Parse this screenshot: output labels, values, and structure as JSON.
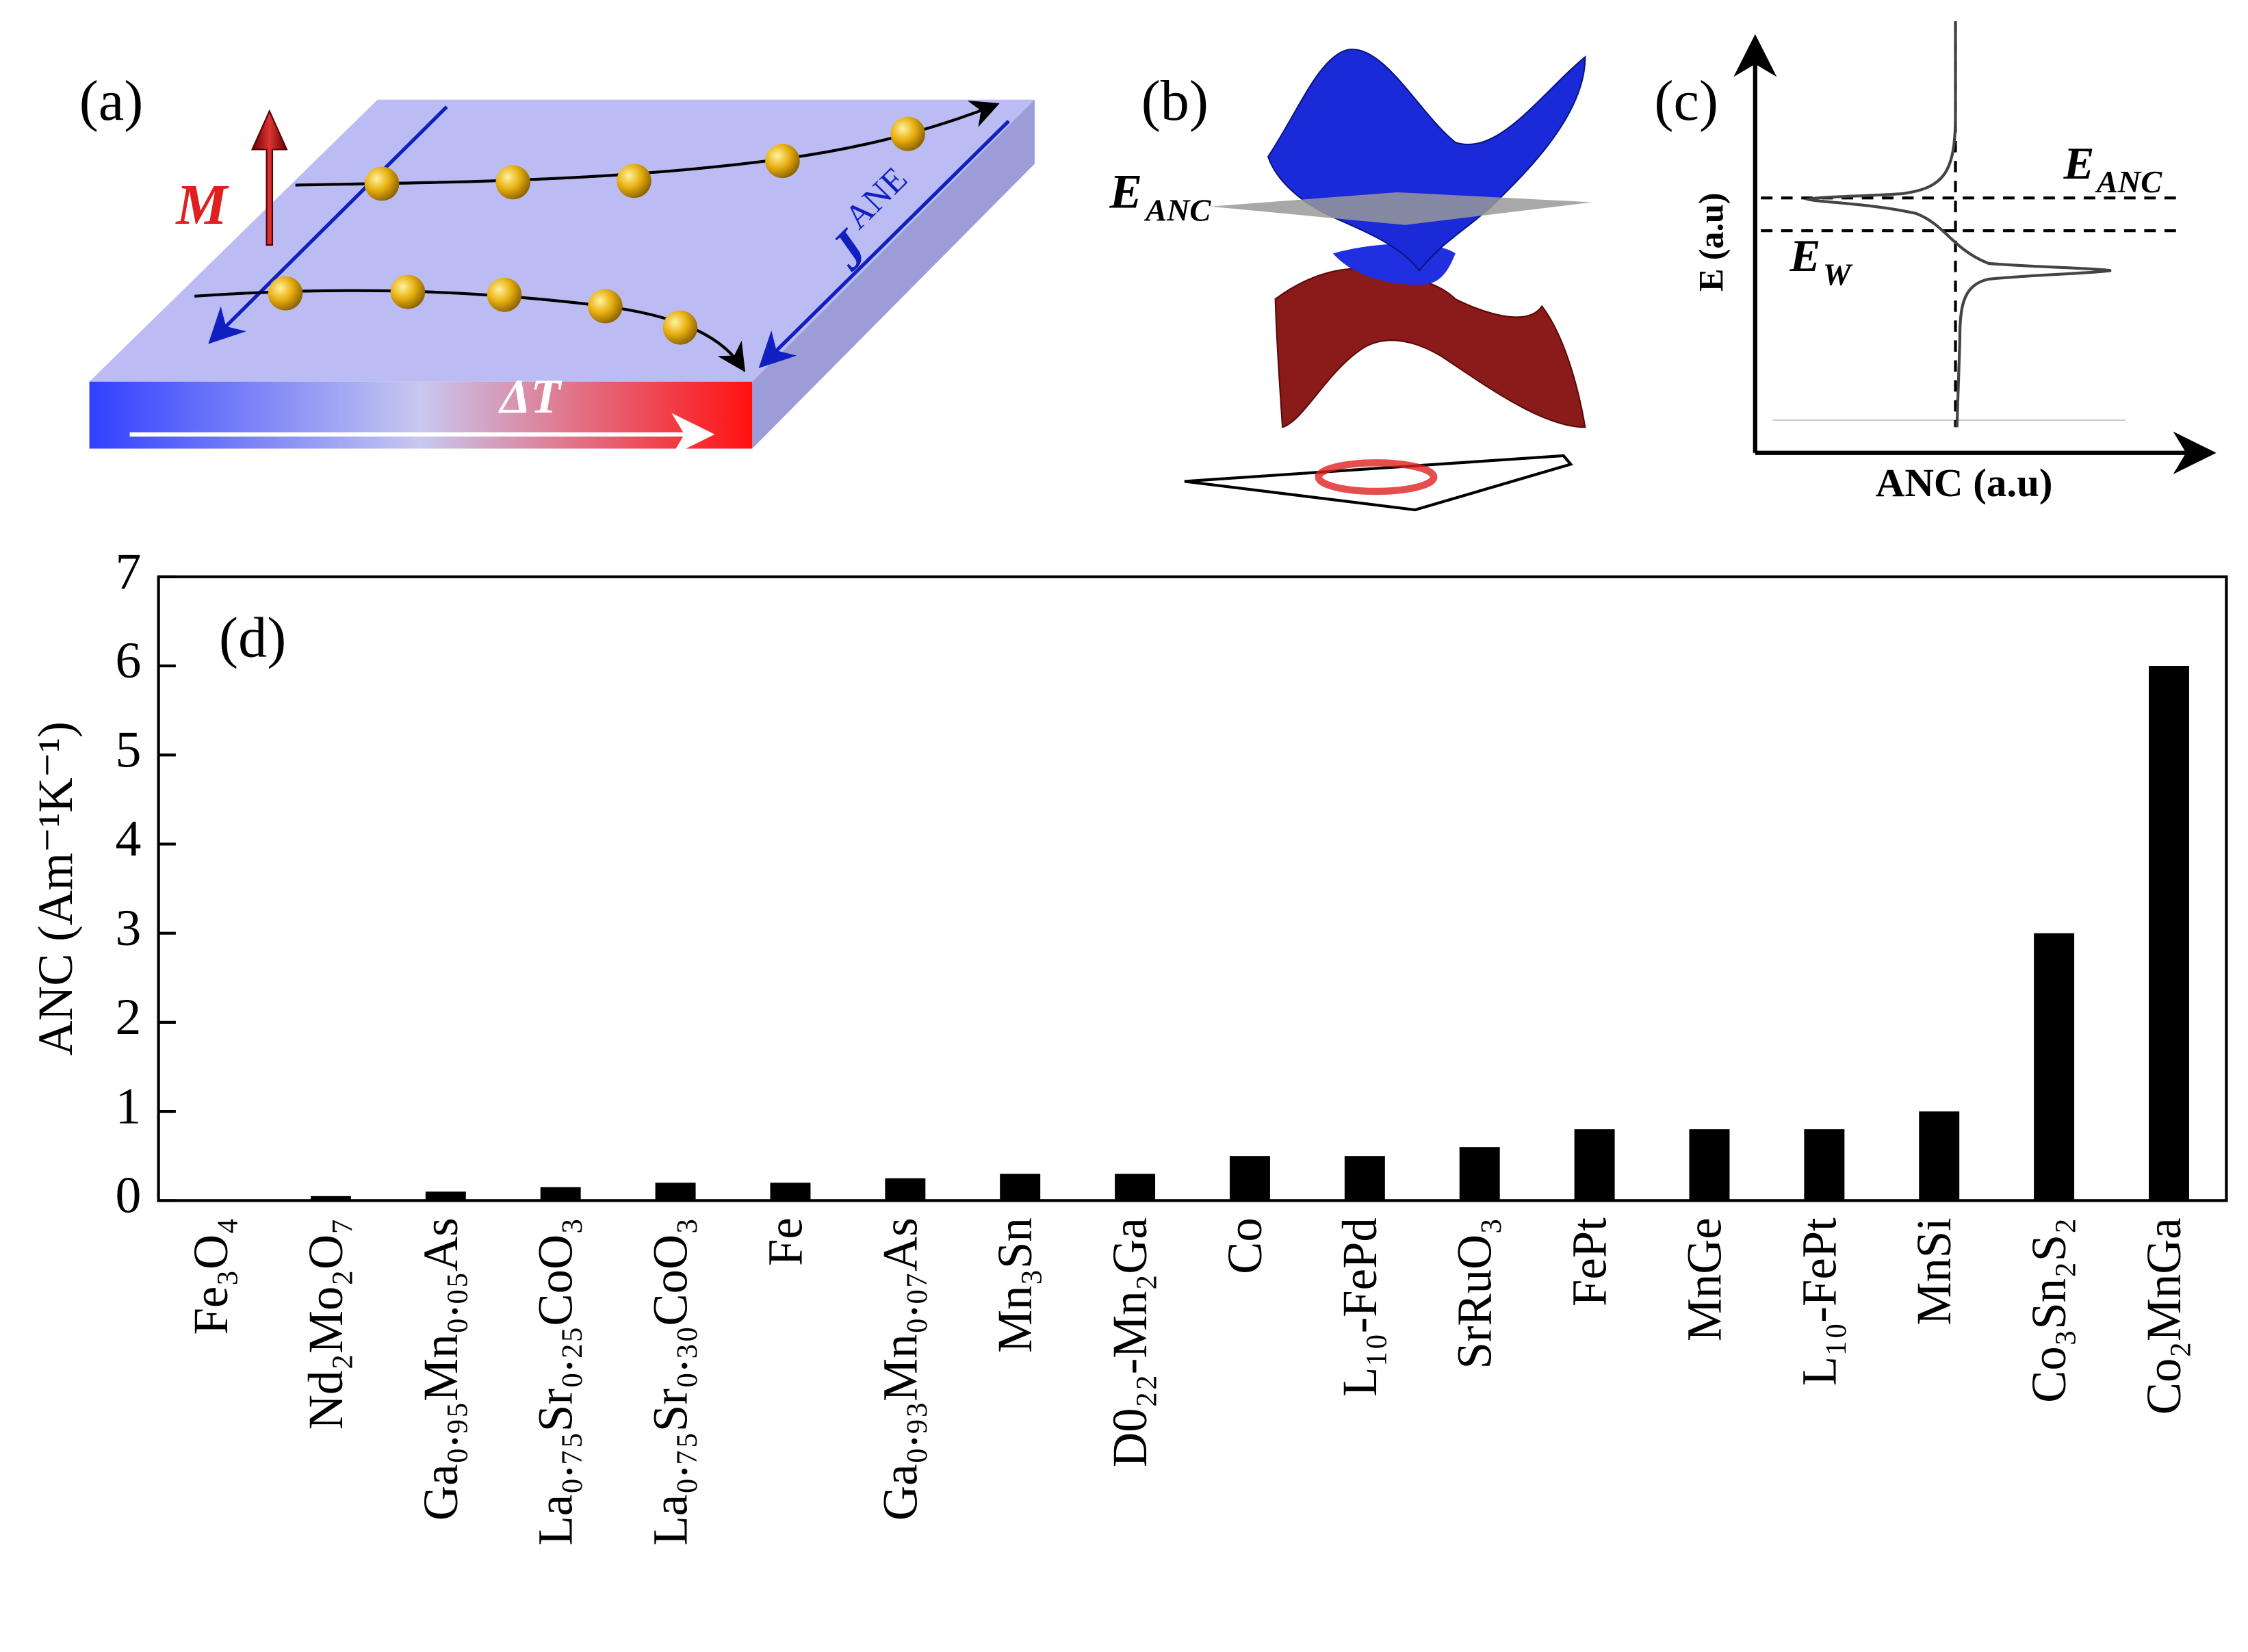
{
  "chart_data": {
    "type": "bar",
    "panel": "(d)",
    "y_label": "ANC (Am⁻¹K⁻¹)",
    "categories": [
      "Fe₃O₄",
      "Nd₂Mo₂O₇",
      "Ga₀.₉₅Mn₀.₀₅As",
      "La₀.₇₅Sr₀.₂₅CoO₃",
      "La₀.₇₅Sr₀.₃₀CoO₃",
      "Fe",
      "Ga₀.₉₃Mn₀.₀₇As",
      "Mn₃Sn",
      "D0₂₂-Mn₂Ga",
      "Co",
      "L₁₀-FePd",
      "SrRuO₃",
      "FePt",
      "MnGe",
      "L₁₀-FePt",
      "MnSi",
      "Co₃Sn₂S₂",
      "Co₂MnGa"
    ],
    "values": [
      0,
      0.05,
      0.1,
      0.15,
      0.2,
      0.2,
      0.25,
      0.3,
      0.3,
      0.5,
      0.5,
      0.6,
      0.8,
      0.8,
      0.8,
      1.0,
      3.0,
      6.0
    ],
    "color": "#000000",
    "ylim": [
      0,
      7
    ],
    "yticks": [
      0,
      1,
      2,
      3,
      4,
      5,
      6,
      7
    ]
  },
  "panel_a": {
    "label": "(a)",
    "magnetization": "M",
    "current": "J",
    "current_sup": "ANE",
    "gradient": "ΔT"
  },
  "panel_b": {
    "label": "(b)",
    "energy": "E",
    "energy_sub": "ANC"
  },
  "panel_c": {
    "label": "(c)",
    "y_label": "E (a.u)",
    "x_label": "ANC (a.u)",
    "e_anc": "E",
    "e_anc_sub": "ANC",
    "e_w": "E",
    "e_w_sub": "W"
  }
}
